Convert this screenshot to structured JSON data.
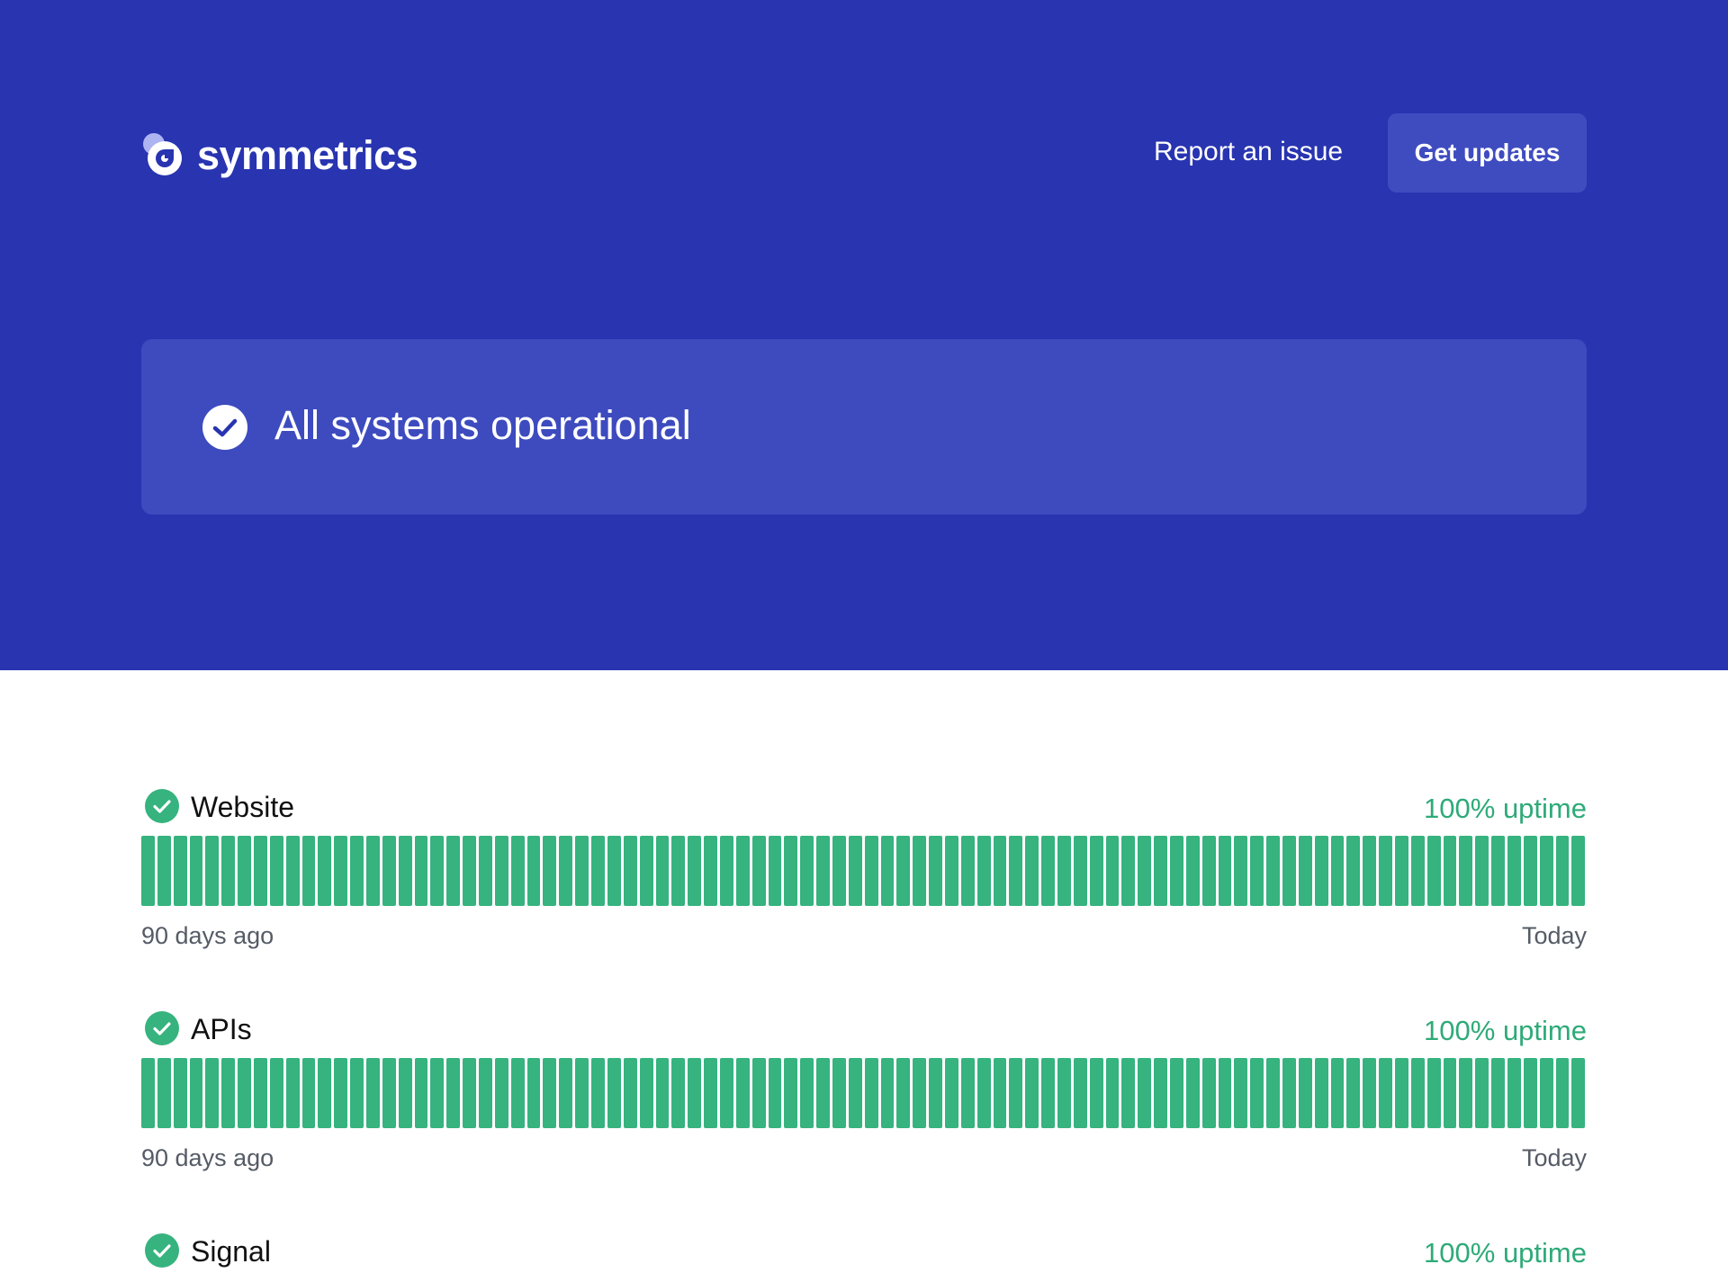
{
  "header": {
    "brand_name": "symmetrics",
    "report_link_label": "Report an issue",
    "updates_button_label": "Get updates"
  },
  "banner": {
    "status_text": "All systems operational"
  },
  "colors": {
    "hero_background": "#2834b0",
    "banner_background": "#3d4bbf",
    "operational_green": "#36b37e",
    "uptime_text_green": "#2eaa78"
  },
  "components": [
    {
      "name": "Website",
      "uptime": "100% uptime",
      "status_icon": "check-circle-icon",
      "range_start": "90 days ago",
      "range_end": "Today",
      "days": 90,
      "daily_status": "operational"
    },
    {
      "name": "APIs",
      "uptime": "100% uptime",
      "status_icon": "check-circle-icon",
      "range_start": "90 days ago",
      "range_end": "Today",
      "days": 90,
      "daily_status": "operational"
    },
    {
      "name": "Signal",
      "uptime": "100% uptime",
      "status_icon": "check-circle-icon"
    }
  ]
}
